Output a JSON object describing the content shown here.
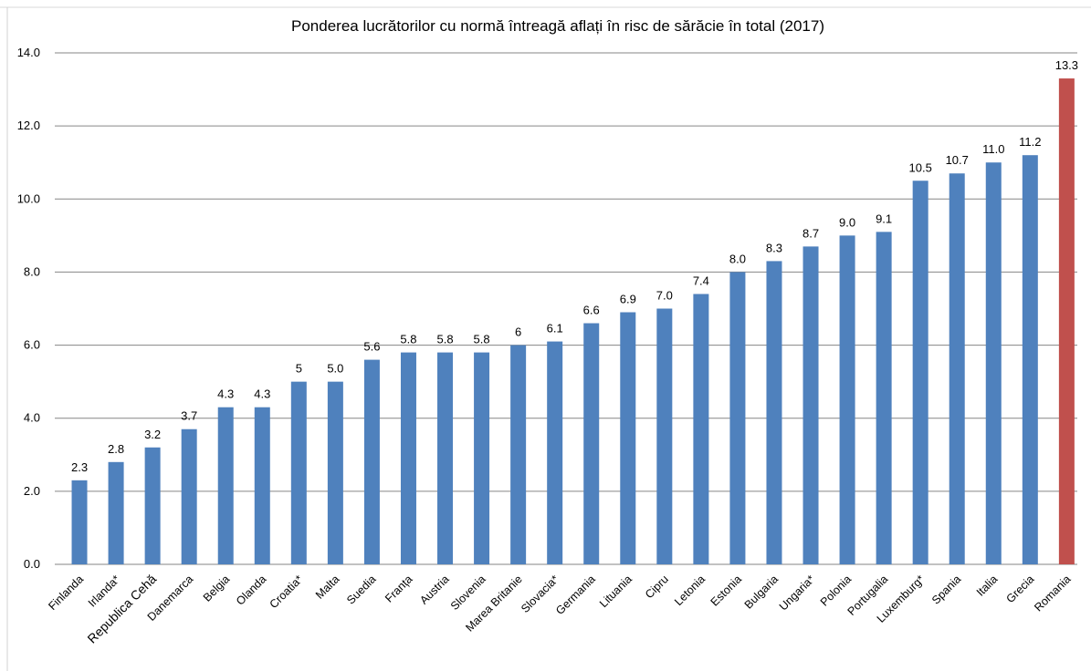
{
  "chart_data": {
    "type": "bar",
    "title": "Ponderea lucrătorilor cu normă întreagă aflați în risc de sărăcie în total (2017)",
    "xlabel": "",
    "ylabel": "",
    "ylim": [
      0,
      14
    ],
    "yticks": [
      "0.0",
      "2.0",
      "4.0",
      "6.0",
      "8.0",
      "10.0",
      "12.0",
      "14.0"
    ],
    "grid": true,
    "legend": "none",
    "categories": [
      "Finlanda",
      "Irlanda*",
      "Republica Cehă",
      "Danemarca",
      "Belgia",
      "Olanda",
      "Croatia*",
      "Malta",
      "Suedia",
      "Franța",
      "Austria",
      "Slovenia",
      "Marea Britanie",
      "Slovacia*",
      "Germania",
      "Lituania",
      "Cipru",
      "Letonia",
      "Estonia",
      "Bulgaria",
      "Ungaria*",
      "Polonia",
      "Portugalia",
      "Luxemburg*",
      "Spania",
      "Italia",
      "Grecia",
      "Romania"
    ],
    "values": [
      2.3,
      2.8,
      3.2,
      3.7,
      4.3,
      4.3,
      5,
      5.0,
      5.6,
      5.8,
      5.8,
      5.8,
      6,
      6.1,
      6.6,
      6.9,
      7.0,
      7.4,
      8.0,
      8.3,
      8.7,
      9.0,
      9.1,
      10.5,
      10.7,
      11.0,
      11.2,
      13.3
    ],
    "value_labels": [
      "2.3",
      "2.8",
      "3.2",
      "3.7",
      "4.3",
      "4.3",
      "5",
      "5.0",
      "5.6",
      "5.8",
      "5.8",
      "5.8",
      "6",
      "6.1",
      "6.6",
      "6.9",
      "7.0",
      "7.4",
      "8.0",
      "8.3",
      "8.7",
      "9.0",
      "9.1",
      "10.5",
      "10.7",
      "11.0",
      "11.2",
      "13.3"
    ],
    "colors": {
      "bar": "#4f81bd",
      "highlight": "#c0504d",
      "grid": "#868686"
    },
    "highlight_category": "Romania"
  }
}
